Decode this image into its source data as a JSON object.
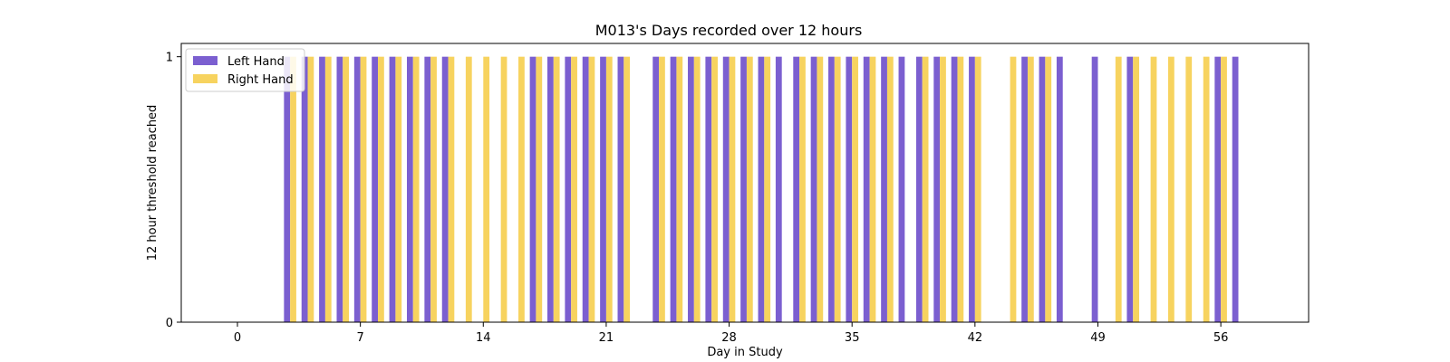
{
  "chart_data": {
    "type": "bar",
    "title": "M013's Days recorded over 12 hours",
    "xlabel": "Day in Study",
    "ylabel": "12 hour threshold reached",
    "xlim": [
      -3.2,
      61
    ],
    "ylim": [
      0,
      1.05
    ],
    "xticks": [
      0,
      7,
      14,
      21,
      28,
      35,
      42,
      49,
      56
    ],
    "yticks": [
      0,
      1
    ],
    "legend_position": "top-left",
    "series": [
      {
        "name": "Left Hand",
        "color": "#7b5fd0",
        "days": [
          3,
          4,
          5,
          6,
          7,
          8,
          9,
          10,
          11,
          12,
          17,
          18,
          19,
          20,
          21,
          22,
          24,
          25,
          26,
          27,
          28,
          29,
          30,
          31,
          32,
          33,
          34,
          35,
          36,
          37,
          38,
          39,
          40,
          41,
          42,
          45,
          46,
          47,
          49,
          51,
          56,
          57
        ],
        "value": 1
      },
      {
        "name": "Right Hand",
        "color": "#f7d35f",
        "days": [
          3,
          4,
          5,
          6,
          7,
          8,
          9,
          10,
          11,
          12,
          13,
          14,
          15,
          16,
          17,
          18,
          19,
          20,
          21,
          22,
          24,
          25,
          26,
          27,
          28,
          29,
          30,
          32,
          33,
          34,
          35,
          36,
          37,
          39,
          40,
          41,
          42,
          44,
          45,
          46,
          50,
          51,
          52,
          53,
          54,
          55,
          56
        ],
        "value": 1
      }
    ]
  }
}
